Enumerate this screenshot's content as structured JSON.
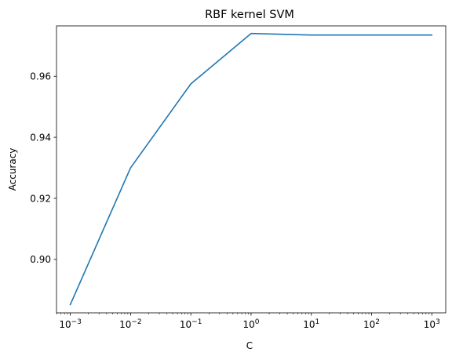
{
  "chart_data": {
    "type": "line",
    "title": "RBF kernel SVM",
    "xlabel": "C",
    "ylabel": "Accuracy",
    "xscale": "log",
    "xlim": [
      0.00059,
      1700
    ],
    "ylim": [
      0.8825,
      0.9765
    ],
    "x": [
      0.001,
      0.01,
      0.1,
      1,
      10,
      100,
      1000
    ],
    "x_ticks": [
      0.001,
      0.01,
      0.1,
      1,
      10,
      100,
      1000
    ],
    "x_tick_labels": [
      {
        "base": "10",
        "exp": "−3"
      },
      {
        "base": "10",
        "exp": "−2"
      },
      {
        "base": "10",
        "exp": "−1"
      },
      {
        "base": "10",
        "exp": "0"
      },
      {
        "base": "10",
        "exp": "1"
      },
      {
        "base": "10",
        "exp": "2"
      },
      {
        "base": "10",
        "exp": "3"
      }
    ],
    "y_ticks": [
      0.9,
      0.92,
      0.94,
      0.96
    ],
    "y_tick_labels": [
      "0.90",
      "0.92",
      "0.94",
      "0.96"
    ],
    "grid": false,
    "series": [
      {
        "values": [
          0.8852,
          0.93,
          0.9575,
          0.974,
          0.9735,
          0.9735,
          0.9735
        ],
        "color": "#1f77b4"
      }
    ]
  }
}
